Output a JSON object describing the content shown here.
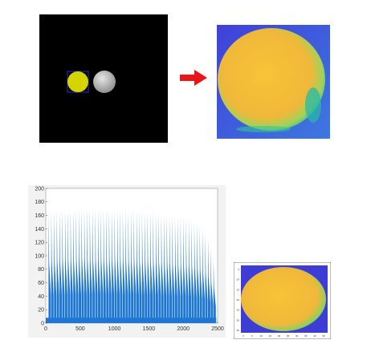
{
  "colors": {
    "background": "#000000",
    "yellow_blob": "#d4d400",
    "grey_blob": "#bdbdbd",
    "arrow": "#e8161a",
    "map_low": "#3b3bd6",
    "map_mid": "#2cc0a0",
    "map_high": "#f6c53a",
    "bar": "#1f77d4"
  },
  "arrow_icon": "right-arrow-icon",
  "chart_data": {
    "type": "bar",
    "title": "",
    "xlabel": "",
    "ylabel": "",
    "xlim": [
      0,
      2500
    ],
    "ylim": [
      0,
      200
    ],
    "xticks": [
      "0",
      "500",
      "1000",
      "1500",
      "2000",
      "2500"
    ],
    "yticks": [
      "0",
      "20",
      "40",
      "60",
      "80",
      "100",
      "120",
      "140",
      "160",
      "180",
      "200"
    ],
    "grid": false,
    "series": [
      {
        "values_description_free": true,
        "peak_start_x": 40,
        "peak_end_x": 2450,
        "peak_spacing": 40,
        "peak_envelope": [
          [
            40,
            164
          ],
          [
            200,
            168
          ],
          [
            500,
            170
          ],
          [
            800,
            170
          ],
          [
            1100,
            168
          ],
          [
            1400,
            166
          ],
          [
            1600,
            164
          ],
          [
            1800,
            160
          ],
          [
            2000,
            156
          ],
          [
            2200,
            150
          ],
          [
            2350,
            130
          ],
          [
            2450,
            92
          ]
        ],
        "baseline": 8
      }
    ]
  },
  "thumb_axis": {
    "xticks": [
      "0",
      "5",
      "10",
      "15",
      "20",
      "25",
      "30",
      "35",
      "40",
      "45"
    ],
    "yticks": [
      "5",
      "10",
      "15",
      "20",
      "25",
      "30",
      "35"
    ]
  }
}
